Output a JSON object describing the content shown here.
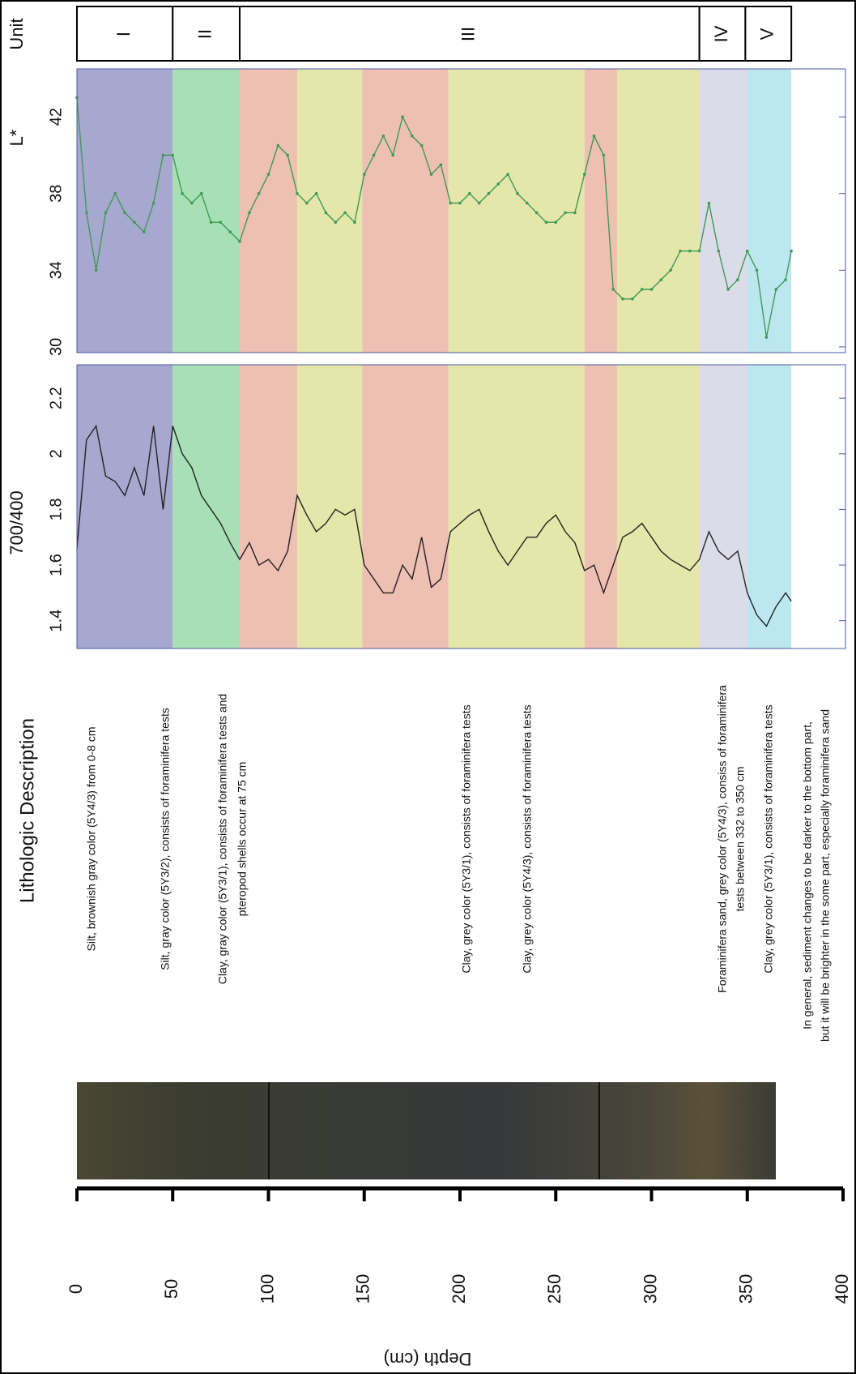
{
  "chart_data": [
    {
      "type": "line",
      "title": "L*",
      "color": "#3f9a55",
      "markers": true,
      "ylim": [
        29.7,
        44.5
      ],
      "yticks": [
        30,
        34,
        38,
        42
      ],
      "x": [
        0,
        5,
        10,
        15,
        20,
        25,
        30,
        35,
        40,
        45,
        50,
        55,
        60,
        65,
        70,
        75,
        80,
        85,
        90,
        95,
        100,
        105,
        110,
        115,
        120,
        125,
        130,
        135,
        140,
        145,
        150,
        155,
        160,
        165,
        170,
        175,
        180,
        185,
        190,
        195,
        200,
        205,
        210,
        215,
        220,
        225,
        230,
        235,
        240,
        245,
        250,
        255,
        260,
        265,
        270,
        275,
        280,
        285,
        290,
        295,
        300,
        305,
        310,
        315,
        320,
        325,
        330,
        335,
        340,
        345,
        350,
        355,
        360,
        365,
        370,
        373
      ],
      "values": [
        43,
        37,
        34,
        37,
        38,
        37,
        36.5,
        36,
        37.5,
        40,
        40,
        38,
        37.5,
        38,
        36.5,
        36.5,
        36,
        35.5,
        37,
        38,
        39,
        40.5,
        40,
        38,
        37.5,
        38,
        37,
        36.5,
        37,
        36.5,
        39,
        40,
        41,
        40,
        42,
        41,
        40.5,
        39,
        39.5,
        37.5,
        37.5,
        38,
        37.5,
        38,
        38.5,
        39,
        38,
        37.5,
        37,
        36.5,
        36.5,
        37,
        37,
        39,
        41,
        40,
        33,
        32.5,
        32.5,
        33,
        33,
        33.5,
        34,
        35,
        35,
        35,
        37.5,
        35,
        33,
        33.5,
        35,
        34,
        30.5,
        33,
        33.5,
        35
      ]
    },
    {
      "type": "line",
      "title": "700/400",
      "color": "#222222",
      "markers": false,
      "ylim": [
        1.3,
        2.32
      ],
      "yticks": [
        1.4,
        1.6,
        1.8,
        2,
        2.2
      ],
      "x": [
        0,
        5,
        10,
        15,
        20,
        25,
        30,
        35,
        40,
        45,
        50,
        55,
        60,
        65,
        70,
        75,
        80,
        85,
        90,
        95,
        100,
        105,
        110,
        115,
        120,
        125,
        130,
        135,
        140,
        145,
        150,
        155,
        160,
        165,
        170,
        175,
        180,
        185,
        190,
        195,
        200,
        205,
        210,
        215,
        220,
        225,
        230,
        235,
        240,
        245,
        250,
        255,
        260,
        265,
        270,
        275,
        280,
        285,
        290,
        295,
        300,
        305,
        310,
        315,
        320,
        325,
        330,
        335,
        340,
        345,
        350,
        355,
        360,
        365,
        370,
        373
      ],
      "values": [
        1.66,
        2.05,
        2.1,
        1.92,
        1.9,
        1.85,
        1.95,
        1.85,
        2.1,
        1.8,
        2.1,
        2.0,
        1.95,
        1.85,
        1.8,
        1.75,
        1.68,
        1.62,
        1.68,
        1.6,
        1.62,
        1.58,
        1.65,
        1.85,
        1.78,
        1.72,
        1.75,
        1.8,
        1.78,
        1.8,
        1.6,
        1.55,
        1.5,
        1.5,
        1.6,
        1.55,
        1.7,
        1.52,
        1.55,
        1.72,
        1.75,
        1.78,
        1.8,
        1.72,
        1.65,
        1.6,
        1.65,
        1.7,
        1.7,
        1.75,
        1.78,
        1.72,
        1.68,
        1.58,
        1.6,
        1.5,
        1.6,
        1.7,
        1.72,
        1.75,
        1.7,
        1.65,
        1.62,
        1.6,
        1.58,
        1.62,
        1.72,
        1.65,
        1.62,
        1.65,
        1.5,
        1.42,
        1.38,
        1.45,
        1.5,
        1.47
      ]
    }
  ],
  "depth_axis": {
    "title": "Depth (cm)",
    "lim": [
      0,
      400
    ],
    "ticks": [
      0,
      50,
      100,
      150,
      200,
      250,
      300,
      350,
      400
    ]
  },
  "unit_header": "Unit",
  "units": [
    {
      "label": "I",
      "start": 0,
      "end": 50
    },
    {
      "label": "II",
      "start": 50,
      "end": 85
    },
    {
      "label": "III",
      "start": 85,
      "end": 325
    },
    {
      "label": "IV",
      "start": 325,
      "end": 349
    },
    {
      "label": "V",
      "start": 349,
      "end": 373
    }
  ],
  "zones": [
    {
      "start": 0,
      "end": 50,
      "color": "#a7a8cf"
    },
    {
      "start": 50,
      "end": 85,
      "color": "#a8e0b5"
    },
    {
      "start": 85,
      "end": 115,
      "color": "#eebfb3"
    },
    {
      "start": 115,
      "end": 149,
      "color": "#e4e6aa"
    },
    {
      "start": 149,
      "end": 194,
      "color": "#eebfb3"
    },
    {
      "start": 194,
      "end": 265,
      "color": "#e4e6aa"
    },
    {
      "start": 265,
      "end": 282,
      "color": "#eebfb3"
    },
    {
      "start": 282,
      "end": 325,
      "color": "#e4e6aa"
    },
    {
      "start": 325,
      "end": 350,
      "color": "#dcdce9"
    },
    {
      "start": 350,
      "end": 373,
      "color": "#bde7ef"
    }
  ],
  "lithology_title": "Lithologic Description",
  "descriptions": [
    [
      "Silt, brownish gray color (5Y4/3) from 0-8 cm"
    ],
    [
      "Silt, gray color (5Y3/2), consists of foraminifera tests"
    ],
    [
      "Clay, gray color (5Y3/1), consists of foraminifera tests and",
      "pteropod shells occur at 75 cm"
    ],
    [
      "Clay, grey color (5Y3/1), consists of foraminifera tests"
    ],
    [
      "Clay, grey color (5Y4/3), consists of foraminifera tests"
    ],
    [
      "Foraminifera sand, grey color (5Y4/3), consiss of foraminifera",
      "tests between 332 to 350 cm"
    ],
    [
      "Clay, grey color (5Y3/1), consists of foraminifera tests"
    ],
    [
      "In general, sediment changes to be darker to the bottom part,",
      "but it will be brighter in the some part, especially foraminifera sand"
    ]
  ]
}
